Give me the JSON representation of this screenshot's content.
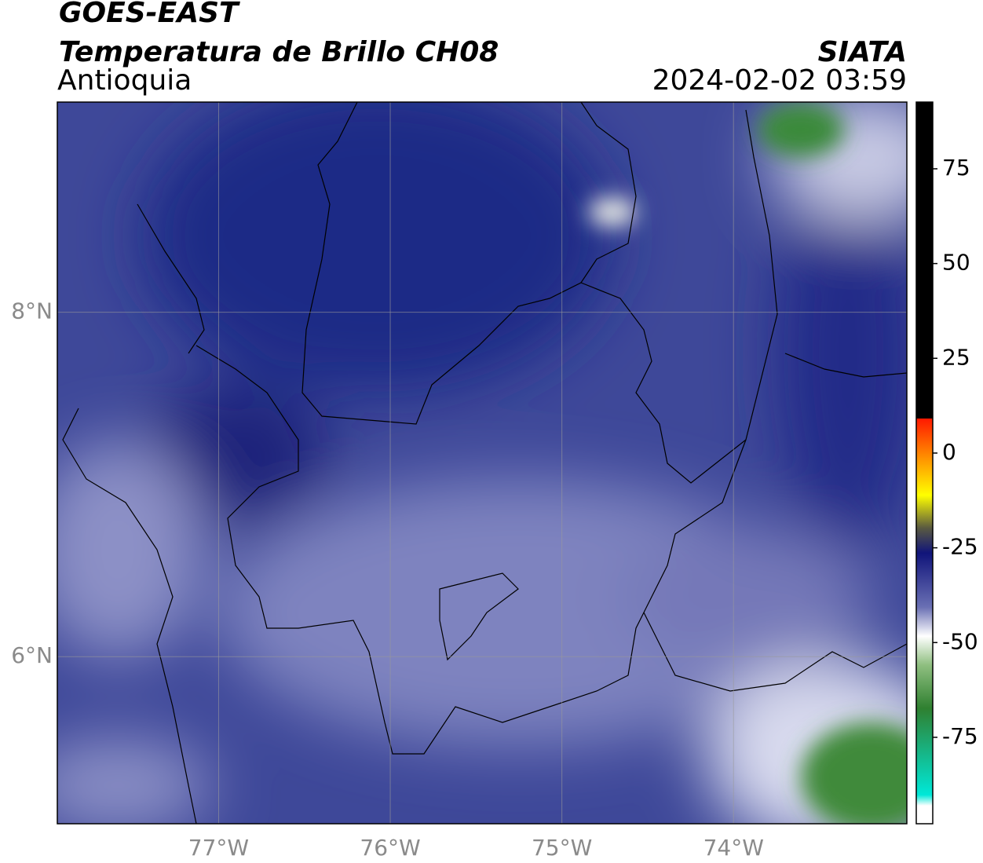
{
  "header": {
    "title": "GOES-EAST",
    "subtitle": "Temperatura de Brillo CH08",
    "region": "Antioquia",
    "source": "SIATA",
    "datetime": "2024-02-02 03:59"
  },
  "map": {
    "xlim": [
      -77.94,
      -72.99
    ],
    "ylim": [
      5.03,
      9.22
    ],
    "xticks": [
      {
        "value": -77,
        "label": "77°W"
      },
      {
        "value": -76,
        "label": "76°W"
      },
      {
        "value": -75,
        "label": "75°W"
      },
      {
        "value": -74,
        "label": "74°W"
      }
    ],
    "yticks": [
      {
        "value": 8,
        "label": "8°N"
      },
      {
        "value": 6,
        "label": "6°N"
      }
    ],
    "grid": true
  },
  "colorbar": {
    "lim": [
      -97.8,
      92.6
    ],
    "ticks": [
      75,
      50,
      25,
      0,
      -25,
      -50,
      -75
    ]
  }
}
